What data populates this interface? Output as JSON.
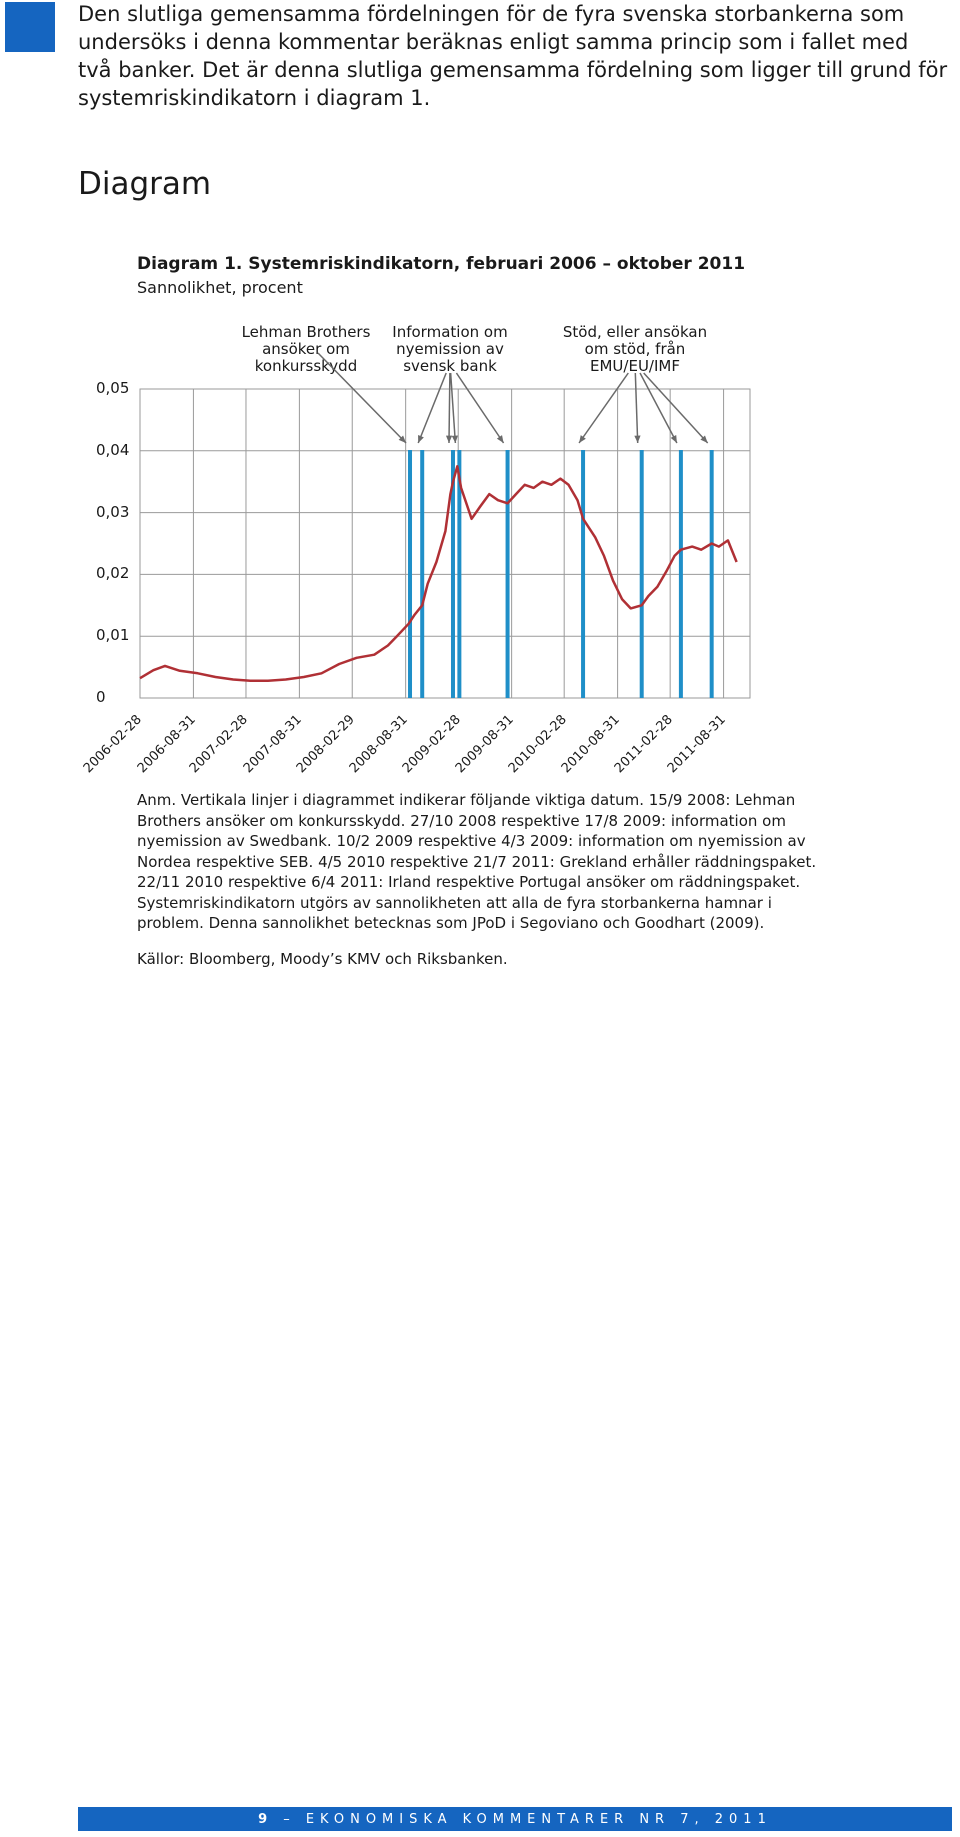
{
  "intro_text": "Den slutliga gemensamma fördelningen för de fyra svenska storbankerna som undersöks i denna kommentar beräknas enligt samma princip som i fallet med två banker. Det är denna slutliga gemensamma fördelning som ligger till grund för systemriskindikatorn i diagram 1.",
  "section_heading": "Diagram",
  "chart_data": {
    "type": "line",
    "title": "Diagram 1. Systemriskindikatorn, februari 2006 – oktober 2011",
    "subtitle": "Sannolikhet, procent",
    "xlabel": "",
    "ylabel": "Sannolikhet, procent",
    "ylim": [
      0,
      0.05
    ],
    "yticks": [
      "0,05",
      "0,04",
      "0,03",
      "0,02",
      "0,01",
      "0"
    ],
    "xticks": [
      "2006-02-28",
      "2006-08-31",
      "2007-02-28",
      "2007-08-31",
      "2008-02-29",
      "2008-08-31",
      "2009-02-28",
      "2009-08-31",
      "2010-02-28",
      "2010-08-31",
      "2011-02-28",
      "2011-08-31"
    ],
    "grid": true,
    "line_color": "#b03035",
    "event_color": "#1f8fc8",
    "series": [
      {
        "points": [
          [
            "2006-02-28",
            0.0032
          ],
          [
            "2006-04-15",
            0.0045
          ],
          [
            "2006-05-25",
            0.0052
          ],
          [
            "2006-07-15",
            0.0044
          ],
          [
            "2006-09-15",
            0.004
          ],
          [
            "2006-11-15",
            0.0034
          ],
          [
            "2007-01-15",
            0.003
          ],
          [
            "2007-03-15",
            0.0028
          ],
          [
            "2007-05-15",
            0.0028
          ],
          [
            "2007-07-15",
            0.003
          ],
          [
            "2007-09-15",
            0.0034
          ],
          [
            "2007-11-15",
            0.004
          ],
          [
            "2008-01-15",
            0.0055
          ],
          [
            "2008-03-15",
            0.0065
          ],
          [
            "2008-05-15",
            0.007
          ],
          [
            "2008-07-01",
            0.0085
          ],
          [
            "2008-08-01",
            0.01
          ],
          [
            "2008-09-10",
            0.012
          ],
          [
            "2008-10-01",
            0.0135
          ],
          [
            "2008-10-27",
            0.015
          ],
          [
            "2008-11-15",
            0.0185
          ],
          [
            "2008-12-15",
            0.022
          ],
          [
            "2009-01-15",
            0.027
          ],
          [
            "2009-02-01",
            0.033
          ],
          [
            "2009-02-10",
            0.035
          ],
          [
            "2009-02-25",
            0.0375
          ],
          [
            "2009-03-10",
            0.034
          ],
          [
            "2009-04-15",
            0.029
          ],
          [
            "2009-05-15",
            0.031
          ],
          [
            "2009-06-15",
            0.033
          ],
          [
            "2009-07-15",
            0.032
          ],
          [
            "2009-08-17",
            0.0315
          ],
          [
            "2009-09-15",
            0.033
          ],
          [
            "2009-10-15",
            0.0345
          ],
          [
            "2009-11-15",
            0.034
          ],
          [
            "2009-12-15",
            0.035
          ],
          [
            "2010-01-15",
            0.0345
          ],
          [
            "2010-02-15",
            0.0355
          ],
          [
            "2010-03-15",
            0.0345
          ],
          [
            "2010-04-15",
            0.032
          ],
          [
            "2010-05-04",
            0.029
          ],
          [
            "2010-06-15",
            0.026
          ],
          [
            "2010-07-15",
            0.023
          ],
          [
            "2010-08-15",
            0.019
          ],
          [
            "2010-09-15",
            0.016
          ],
          [
            "2010-10-15",
            0.0145
          ],
          [
            "2010-11-22",
            0.015
          ],
          [
            "2010-12-15",
            0.0165
          ],
          [
            "2011-01-15",
            0.018
          ],
          [
            "2011-02-15",
            0.0205
          ],
          [
            "2011-03-15",
            0.023
          ],
          [
            "2011-04-06",
            0.024
          ],
          [
            "2011-05-15",
            0.0245
          ],
          [
            "2011-06-15",
            0.024
          ],
          [
            "2011-07-21",
            0.025
          ],
          [
            "2011-08-15",
            0.0245
          ],
          [
            "2011-09-15",
            0.0255
          ],
          [
            "2011-10-15",
            0.022
          ]
        ]
      }
    ],
    "event_lines": [
      "2008-09-15",
      "2008-10-27",
      "2009-02-10",
      "2009-03-04",
      "2009-08-17",
      "2010-05-04",
      "2010-11-22",
      "2011-04-06",
      "2011-07-21"
    ],
    "annotations": [
      {
        "text": "Lehman Brothers ansöker om konkursskydd",
        "targets": [
          "2008-09-15"
        ]
      },
      {
        "text": "Information om nyemission av svensk bank",
        "targets": [
          "2008-10-27",
          "2009-02-10",
          "2009-03-04",
          "2009-08-17"
        ]
      },
      {
        "text": "Stöd, eller ansökan om stöd, från EMU/EU/IMF",
        "targets": [
          "2010-05-04",
          "2010-11-22",
          "2011-04-06",
          "2011-07-21"
        ]
      }
    ]
  },
  "note_text": "Anm. Vertikala linjer i diagrammet indikerar följande viktiga datum. 15/9 2008: Lehman Brothers ansöker om konkursskydd. 27/10 2008 respektive 17/8 2009: information om nyemission av Swedbank. 10/2 2009 respektive 4/3 2009: information om nyemission av Nordea respektive SEB. 4/5 2010 respektive 21/7 2011: Grekland erhåller räddningspaket. 22/11 2010 respektive 6/4 2011: Irland respektive Portugal ansöker om räddningspaket. Systemriskindikatorn utgörs av sannolikheten att alla de fyra storbankerna hamnar i problem. Denna sannolikhet betecknas som JPoD i Segoviano och Goodhart (2009).",
  "sources_text": "Källor: Bloomberg, Moody’s KMV och Riksbanken.",
  "footer": {
    "page_number": "9",
    "title": "– EKONOMISKA KOMMENTARER NR 7, 2011"
  }
}
